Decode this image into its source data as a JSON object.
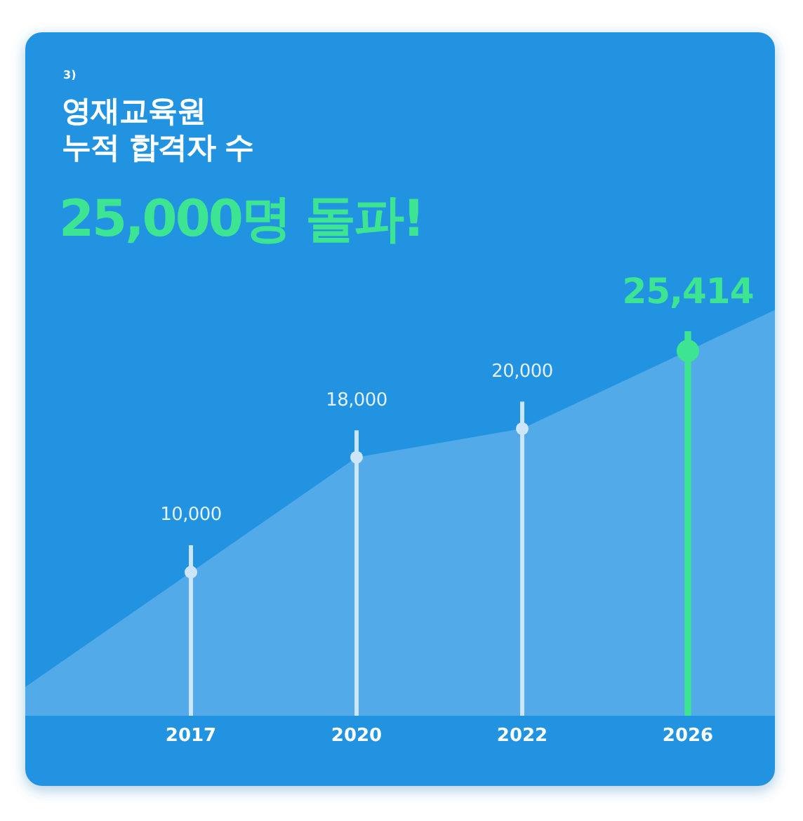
{
  "chart_data": {
    "type": "area",
    "title": "영재교육원\n누적 합격자 수",
    "subtitle": "25,000명 돌파!",
    "annotations": [
      "3)"
    ],
    "categories": [
      "2017",
      "2020",
      "2022",
      "2026"
    ],
    "series": [
      {
        "color": "#52aae8",
        "values": [
          10000,
          18000,
          20000,
          25414
        ]
      },
      {
        "type": "lollipop",
        "marker": "circle",
        "colors": [
          "#cde5f8",
          "#cde5f8",
          "#cde5f8",
          "#3de592"
        ],
        "values": [
          10000,
          18000,
          20000,
          25414
        ],
        "sizes": [
          0.32,
          0.32,
          0.32,
          1
        ],
        "value_labels": [
          "10,000",
          "18,000",
          "20,000",
          "25,414"
        ]
      }
    ]
  }
}
